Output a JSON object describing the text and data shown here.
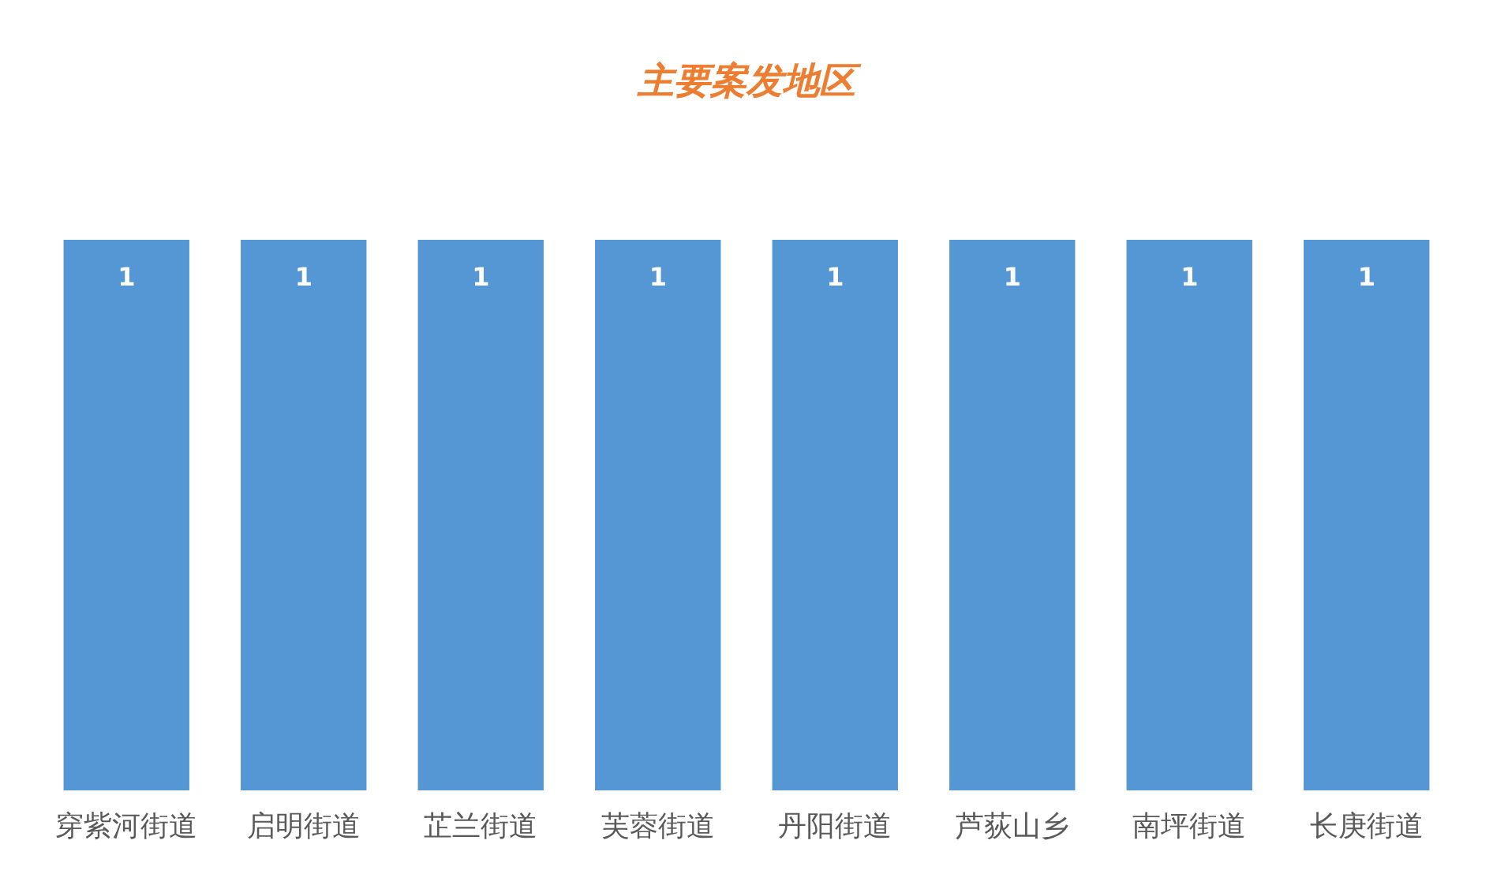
{
  "chart_data": {
    "type": "bar",
    "title": "主要案发地区",
    "categories": [
      "穿紫河街道",
      "启明街道",
      "芷兰街道",
      "芙蓉街道",
      "丹阳街道",
      "芦荻山乡",
      "南坪街道",
      "长庚街道"
    ],
    "values": [
      1,
      1,
      1,
      1,
      1,
      1,
      1,
      1
    ],
    "color": "#5596d5",
    "data_labels": true,
    "tick_labels": "x"
  }
}
